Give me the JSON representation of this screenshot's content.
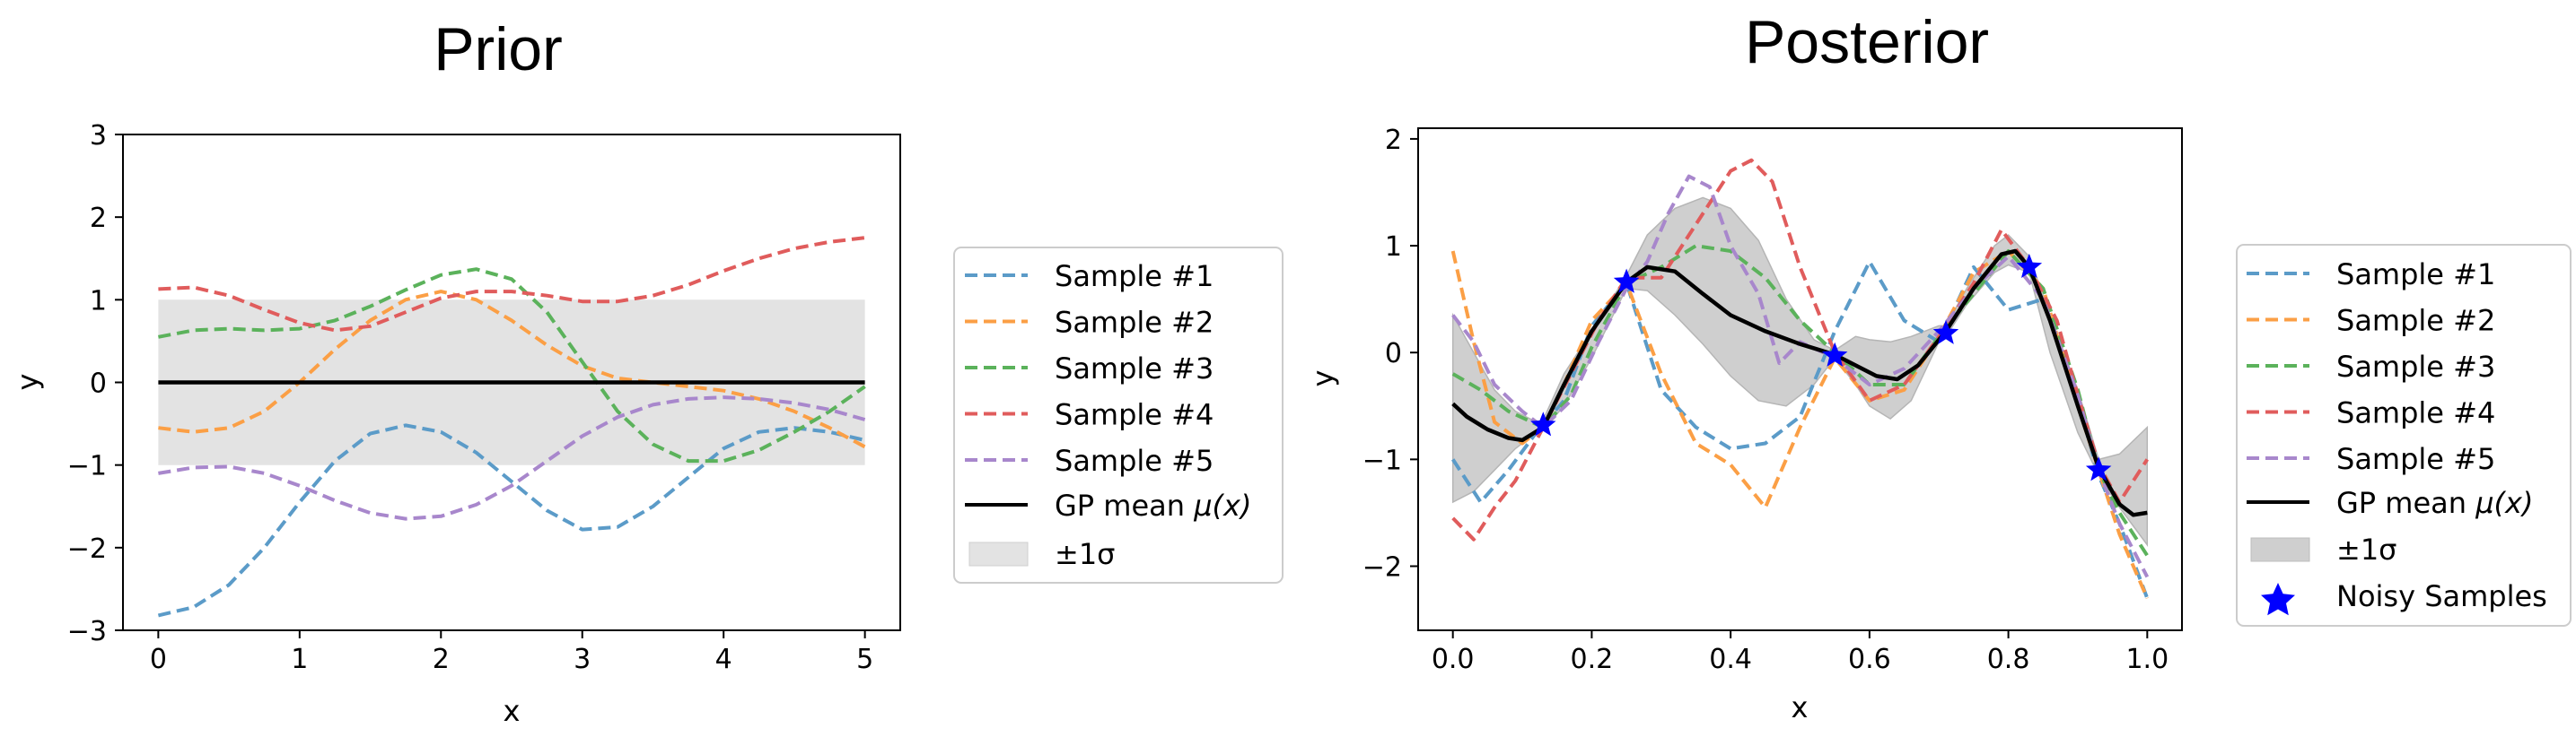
{
  "chart_data": [
    {
      "type": "line",
      "title": "Prior",
      "xlabel": "x",
      "ylabel": "y",
      "xlim": [
        -0.25,
        5.25
      ],
      "ylim": [
        -3,
        3
      ],
      "xticks": [
        0,
        1,
        2,
        3,
        4,
        5
      ],
      "xtick_labels": [
        "0",
        "1",
        "2",
        "3",
        "4",
        "5"
      ],
      "yticks": [
        -3,
        -2,
        -1,
        0,
        1,
        2,
        3
      ],
      "ytick_labels": [
        "−3",
        "−2",
        "−1",
        "0",
        "1",
        "2",
        "3"
      ],
      "band": {
        "label": "±1σ",
        "color": "#e3e3e3",
        "x": [
          0,
          5
        ],
        "lower": [
          -1,
          -1
        ],
        "upper": [
          1,
          1
        ]
      },
      "mean": {
        "label_prefix": "GP mean ",
        "label_math": "μ(x)",
        "color": "#000000",
        "x": [
          0,
          5
        ],
        "y": [
          0,
          0
        ]
      },
      "series": [
        {
          "name": "Sample #1",
          "color": "#5b9bc8",
          "x": [
            0,
            0.25,
            0.5,
            0.75,
            1.0,
            1.25,
            1.5,
            1.75,
            2.0,
            2.25,
            2.5,
            2.75,
            3.0,
            3.25,
            3.5,
            3.75,
            4.0,
            4.25,
            4.5,
            4.75,
            5.0
          ],
          "y": [
            -2.82,
            -2.72,
            -2.45,
            -2.0,
            -1.45,
            -0.95,
            -0.62,
            -0.52,
            -0.6,
            -0.85,
            -1.2,
            -1.55,
            -1.78,
            -1.75,
            -1.5,
            -1.15,
            -0.8,
            -0.6,
            -0.55,
            -0.6,
            -0.7
          ]
        },
        {
          "name": "Sample #2",
          "color": "#fb9f45",
          "x": [
            0,
            0.25,
            0.5,
            0.75,
            1.0,
            1.25,
            1.5,
            1.75,
            2.0,
            2.25,
            2.5,
            2.75,
            3.0,
            3.25,
            3.5,
            3.75,
            4.0,
            4.25,
            4.5,
            4.75,
            5.0
          ],
          "y": [
            -0.55,
            -0.6,
            -0.55,
            -0.35,
            0.0,
            0.4,
            0.75,
            1.0,
            1.1,
            1.0,
            0.75,
            0.45,
            0.2,
            0.05,
            0.0,
            -0.05,
            -0.1,
            -0.2,
            -0.35,
            -0.55,
            -0.78
          ]
        },
        {
          "name": "Sample #3",
          "color": "#5bb25b",
          "x": [
            0,
            0.25,
            0.5,
            0.75,
            1.0,
            1.25,
            1.5,
            1.75,
            2.0,
            2.25,
            2.5,
            2.75,
            3.0,
            3.25,
            3.5,
            3.75,
            4.0,
            4.25,
            4.5,
            4.75,
            5.0
          ],
          "y": [
            0.55,
            0.63,
            0.65,
            0.63,
            0.65,
            0.75,
            0.92,
            1.12,
            1.3,
            1.37,
            1.25,
            0.85,
            0.25,
            -0.35,
            -0.75,
            -0.95,
            -0.95,
            -0.82,
            -0.6,
            -0.35,
            -0.05
          ]
        },
        {
          "name": "Sample #4",
          "color": "#e05c5c",
          "x": [
            0,
            0.25,
            0.5,
            0.75,
            1.0,
            1.25,
            1.5,
            1.75,
            2.0,
            2.25,
            2.5,
            2.75,
            3.0,
            3.25,
            3.5,
            3.75,
            4.0,
            4.25,
            4.5,
            4.75,
            5.0
          ],
          "y": [
            1.13,
            1.15,
            1.05,
            0.88,
            0.72,
            0.63,
            0.68,
            0.85,
            1.02,
            1.1,
            1.1,
            1.05,
            0.98,
            0.98,
            1.05,
            1.18,
            1.35,
            1.5,
            1.62,
            1.7,
            1.75
          ]
        },
        {
          "name": "Sample #5",
          "color": "#a887cc",
          "x": [
            0,
            0.25,
            0.5,
            0.75,
            1.0,
            1.25,
            1.5,
            1.75,
            2.0,
            2.25,
            2.5,
            2.75,
            3.0,
            3.25,
            3.5,
            3.75,
            4.0,
            4.25,
            4.5,
            4.75,
            5.0
          ],
          "y": [
            -1.1,
            -1.03,
            -1.02,
            -1.1,
            -1.25,
            -1.43,
            -1.58,
            -1.65,
            -1.62,
            -1.48,
            -1.25,
            -0.95,
            -0.65,
            -0.42,
            -0.27,
            -0.2,
            -0.18,
            -0.2,
            -0.25,
            -0.33,
            -0.45
          ]
        }
      ],
      "legend_position": "outside-right"
    },
    {
      "type": "line",
      "title": "Posterior",
      "xlabel": "x",
      "ylabel": "y",
      "xlim": [
        -0.05,
        1.05
      ],
      "ylim": [
        -2.6,
        2.1
      ],
      "xticks": [
        0.0,
        0.2,
        0.4,
        0.6,
        0.8,
        1.0
      ],
      "xtick_labels": [
        "0.0",
        "0.2",
        "0.4",
        "0.6",
        "0.8",
        "1.0"
      ],
      "yticks": [
        -2,
        -1,
        0,
        1,
        2
      ],
      "ytick_labels": [
        "−2",
        "−1",
        "0",
        "1",
        "2"
      ],
      "band": {
        "label": "±1σ",
        "color": "#cfcfcf",
        "x": [
          0.0,
          0.03,
          0.06,
          0.09,
          0.12,
          0.13,
          0.16,
          0.2,
          0.25,
          0.28,
          0.32,
          0.36,
          0.4,
          0.44,
          0.48,
          0.52,
          0.55,
          0.58,
          0.6,
          0.63,
          0.66,
          0.7,
          0.71,
          0.74,
          0.78,
          0.8,
          0.83,
          0.86,
          0.9,
          0.93,
          0.96,
          1.0
        ],
        "lower": [
          -1.4,
          -1.3,
          -1.1,
          -0.9,
          -0.75,
          -0.72,
          -0.5,
          -0.05,
          0.6,
          0.58,
          0.35,
          0.08,
          -0.22,
          -0.45,
          -0.5,
          -0.3,
          -0.05,
          -0.3,
          -0.5,
          -0.62,
          -0.45,
          0.1,
          0.15,
          0.45,
          0.75,
          0.82,
          0.75,
          0.0,
          -0.75,
          -1.15,
          -1.45,
          -1.8
        ],
        "upper": [
          0.35,
          0.0,
          -0.35,
          -0.55,
          -0.65,
          -0.63,
          -0.2,
          0.2,
          0.72,
          1.1,
          1.35,
          1.45,
          1.35,
          1.05,
          0.5,
          0.12,
          0.02,
          0.15,
          0.12,
          0.1,
          0.15,
          0.25,
          0.25,
          0.6,
          1.0,
          1.1,
          0.9,
          0.35,
          -0.35,
          -1.0,
          -0.95,
          -0.7
        ]
      },
      "mean": {
        "label_prefix": "GP mean ",
        "label_math": "μ(x)",
        "color": "#000000",
        "x": [
          0.0,
          0.02,
          0.05,
          0.08,
          0.1,
          0.13,
          0.16,
          0.2,
          0.25,
          0.28,
          0.32,
          0.36,
          0.4,
          0.45,
          0.5,
          0.55,
          0.58,
          0.61,
          0.64,
          0.67,
          0.71,
          0.75,
          0.79,
          0.81,
          0.83,
          0.86,
          0.9,
          0.93,
          0.96,
          0.98,
          1.0
        ],
        "y": [
          -0.48,
          -0.6,
          -0.72,
          -0.8,
          -0.82,
          -0.7,
          -0.3,
          0.2,
          0.66,
          0.8,
          0.76,
          0.55,
          0.35,
          0.2,
          0.08,
          -0.02,
          -0.12,
          -0.22,
          -0.25,
          -0.12,
          0.2,
          0.6,
          0.92,
          0.95,
          0.8,
          0.3,
          -0.5,
          -1.08,
          -1.42,
          -1.52,
          -1.5
        ]
      },
      "series": [
        {
          "name": "Sample #1",
          "color": "#5b9bc8",
          "x": [
            0.0,
            0.04,
            0.08,
            0.12,
            0.16,
            0.2,
            0.25,
            0.3,
            0.35,
            0.4,
            0.45,
            0.5,
            0.55,
            0.6,
            0.65,
            0.7,
            0.75,
            0.8,
            0.85,
            0.9,
            0.93,
            0.96,
            1.0
          ],
          "y": [
            -1.0,
            -1.4,
            -1.1,
            -0.75,
            -0.45,
            0.25,
            0.65,
            -0.35,
            -0.7,
            -0.9,
            -0.85,
            -0.6,
            0.2,
            0.85,
            0.3,
            0.1,
            0.8,
            0.4,
            0.5,
            -0.45,
            -1.15,
            -1.6,
            -2.3
          ]
        },
        {
          "name": "Sample #2",
          "color": "#fb9f45",
          "x": [
            0.0,
            0.03,
            0.06,
            0.1,
            0.13,
            0.16,
            0.2,
            0.25,
            0.3,
            0.35,
            0.4,
            0.45,
            0.5,
            0.55,
            0.6,
            0.65,
            0.7,
            0.75,
            0.8,
            0.85,
            0.9,
            0.93,
            0.96,
            1.0
          ],
          "y": [
            0.95,
            0.1,
            -0.65,
            -0.85,
            -0.7,
            -0.3,
            0.3,
            0.65,
            -0.2,
            -0.85,
            -1.05,
            -1.45,
            -0.7,
            -0.05,
            -0.45,
            -0.35,
            0.15,
            0.75,
            0.95,
            0.6,
            -0.5,
            -1.1,
            -1.7,
            -2.3
          ]
        },
        {
          "name": "Sample #3",
          "color": "#5bb25b",
          "x": [
            0.0,
            0.04,
            0.08,
            0.13,
            0.17,
            0.2,
            0.25,
            0.3,
            0.35,
            0.4,
            0.45,
            0.5,
            0.55,
            0.6,
            0.65,
            0.7,
            0.75,
            0.8,
            0.85,
            0.9,
            0.93,
            0.96,
            1.0
          ],
          "y": [
            -0.2,
            -0.35,
            -0.55,
            -0.7,
            -0.4,
            0.05,
            0.65,
            0.8,
            1.0,
            0.95,
            0.7,
            0.3,
            0.0,
            -0.3,
            -0.3,
            0.15,
            0.55,
            0.95,
            0.6,
            -0.35,
            -1.1,
            -1.5,
            -1.9
          ]
        },
        {
          "name": "Sample #4",
          "color": "#e05c5c",
          "x": [
            0.0,
            0.03,
            0.06,
            0.09,
            0.13,
            0.17,
            0.21,
            0.25,
            0.3,
            0.35,
            0.4,
            0.43,
            0.46,
            0.5,
            0.55,
            0.6,
            0.65,
            0.7,
            0.75,
            0.79,
            0.83,
            0.87,
            0.9,
            0.93,
            0.96,
            1.0
          ],
          "y": [
            -1.55,
            -1.75,
            -1.45,
            -1.2,
            -0.7,
            -0.2,
            0.3,
            0.7,
            0.7,
            1.2,
            1.7,
            1.8,
            1.6,
            0.8,
            0.0,
            -0.45,
            -0.3,
            0.15,
            0.65,
            1.15,
            0.8,
            0.3,
            -0.4,
            -1.05,
            -1.4,
            -1.0
          ]
        },
        {
          "name": "Sample #5",
          "color": "#a887cc",
          "x": [
            0.0,
            0.03,
            0.06,
            0.1,
            0.13,
            0.17,
            0.21,
            0.25,
            0.28,
            0.31,
            0.34,
            0.37,
            0.4,
            0.44,
            0.47,
            0.5,
            0.55,
            0.6,
            0.65,
            0.7,
            0.75,
            0.8,
            0.85,
            0.9,
            0.93,
            0.96,
            1.0
          ],
          "y": [
            0.35,
            0.1,
            -0.3,
            -0.55,
            -0.7,
            -0.45,
            0.1,
            0.6,
            0.85,
            1.3,
            1.65,
            1.55,
            1.0,
            0.55,
            -0.1,
            0.1,
            -0.05,
            -0.3,
            -0.15,
            0.2,
            0.6,
            0.9,
            0.5,
            -0.4,
            -1.1,
            -1.6,
            -2.1
          ]
        }
      ],
      "noisy_samples": {
        "label": "Noisy Samples",
        "color": "#0000ff",
        "x": [
          0.13,
          0.25,
          0.55,
          0.71,
          0.83,
          0.93
        ],
        "y": [
          -0.68,
          0.66,
          -0.03,
          0.18,
          0.8,
          -1.1
        ]
      },
      "legend_position": "outside-right"
    }
  ]
}
